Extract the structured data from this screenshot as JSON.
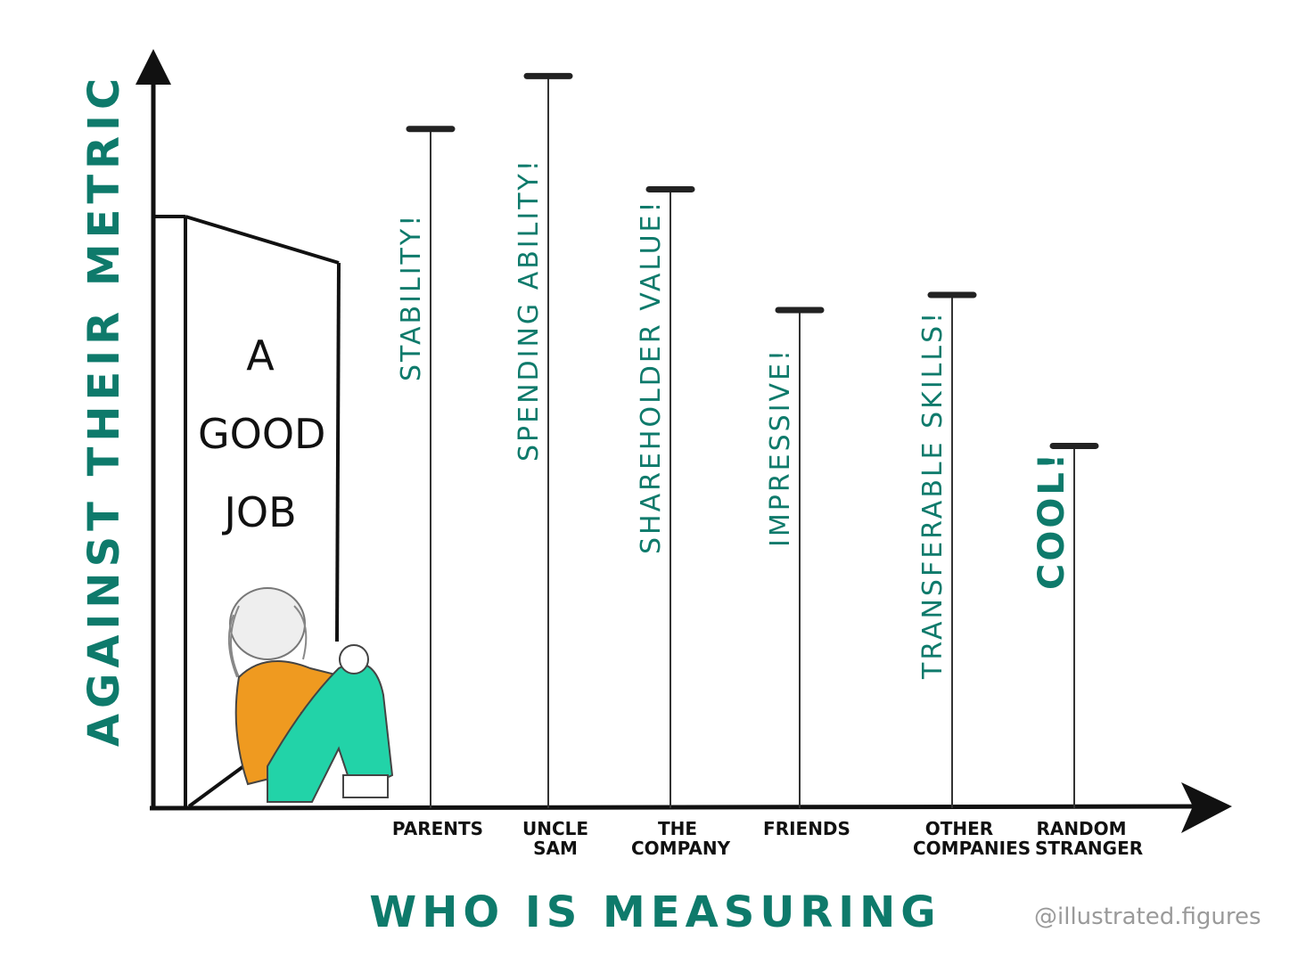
{
  "chart_data": {
    "type": "lollipop",
    "x_label": "WHO IS MEASURING",
    "y_label": "AGAINST THEIR METRIC",
    "categories": [
      "PARENTS",
      "UNCLE SAM",
      "THE COMPANY",
      "FRIENDS",
      "OTHER COMPANIES",
      "RANDOM STRANGER"
    ],
    "values": [
      90,
      97,
      82,
      66,
      68,
      48
    ],
    "annotations": [
      "STABILITY!",
      "SPENDING ABILITY!",
      "SHAREHOLDER VALUE!",
      "IMPRESSIVE!",
      "TRANSFERABLE SKILLS!",
      "COOL!"
    ],
    "ylim": [
      0,
      100
    ],
    "color": "#0e7a6b"
  },
  "door_label": "A GOOD JOB",
  "credit": "@illustrated.figures"
}
